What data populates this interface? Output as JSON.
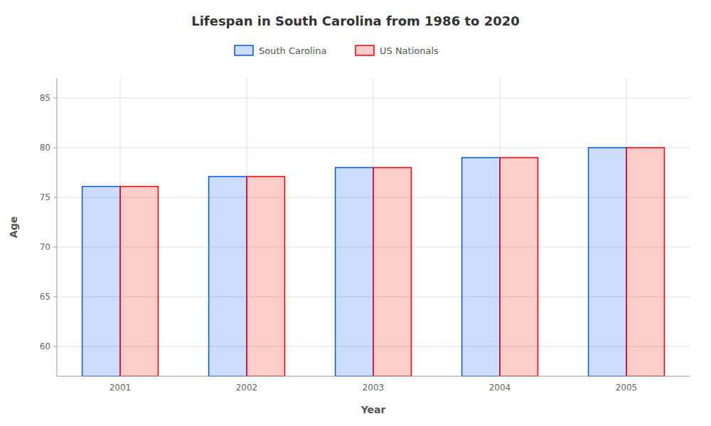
{
  "chart_data": {
    "type": "bar",
    "title": "Lifespan in South Carolina from 1986 to 2020",
    "x_label": "Year",
    "y_label": "Age",
    "categories": [
      "2001",
      "2002",
      "2003",
      "2004",
      "2005"
    ],
    "series": [
      {
        "name": "South Carolina",
        "color": "#0055ff",
        "values": [
          76.1,
          77.1,
          78.0,
          79.0,
          80.0
        ]
      },
      {
        "name": "US Nationals",
        "color": "#ff0000",
        "values": [
          76.1,
          77.1,
          78.0,
          79.0,
          80.0
        ]
      }
    ],
    "ylim": [
      57,
      87
    ],
    "yticks": [
      60,
      65,
      70,
      75,
      80,
      85
    ],
    "grid": true,
    "legend": "top"
  }
}
